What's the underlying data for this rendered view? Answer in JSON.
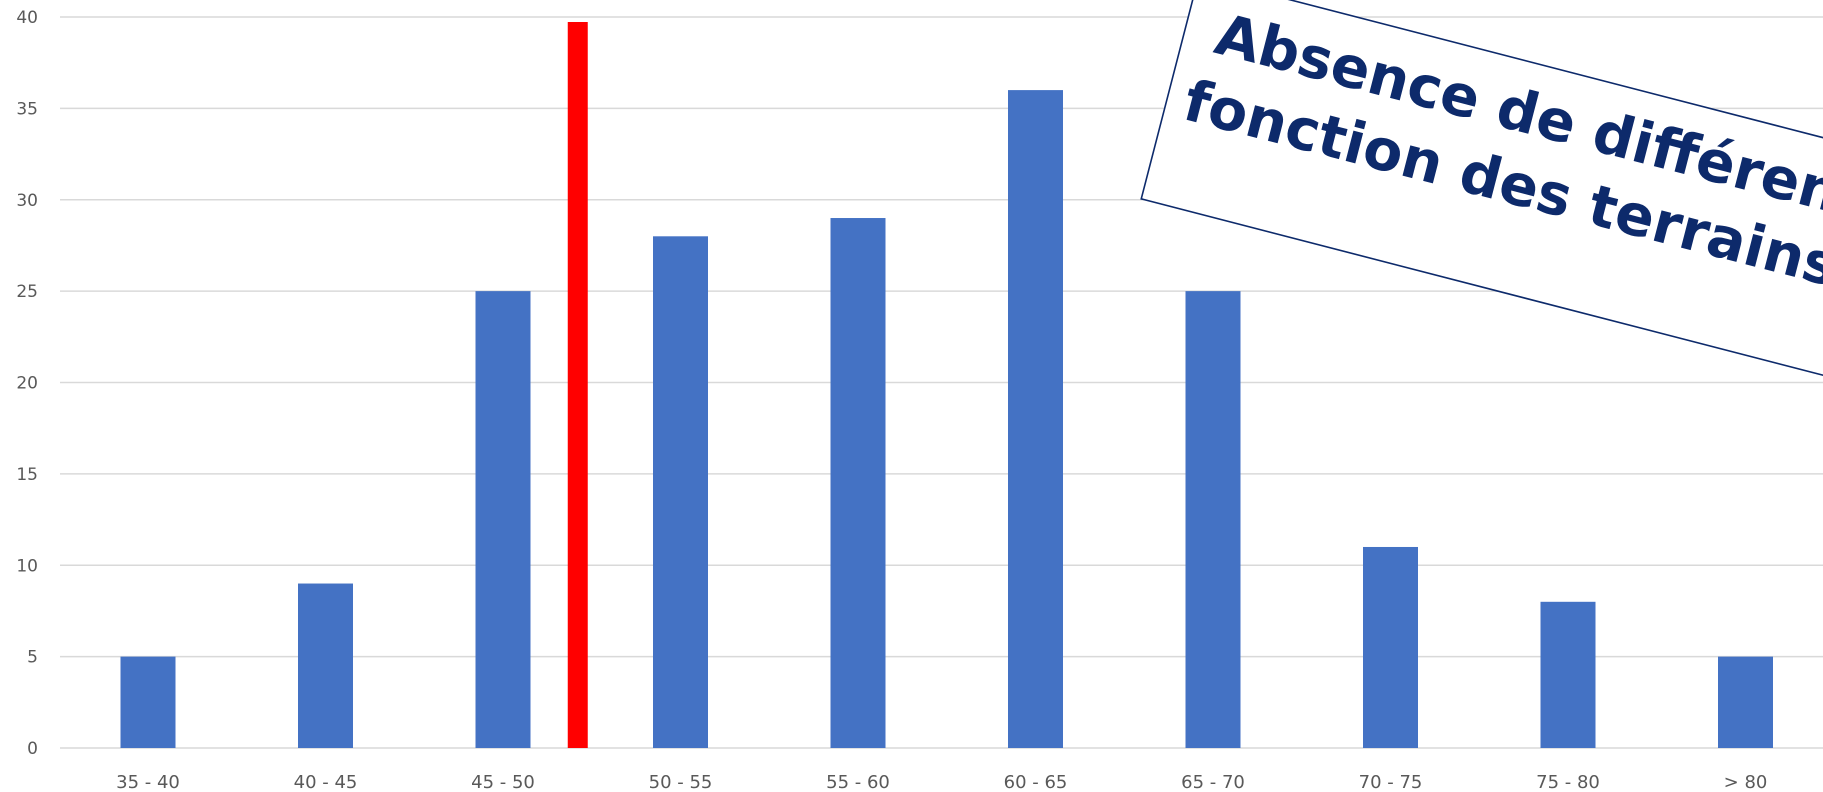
{
  "chart_data": {
    "type": "bar",
    "categories": [
      "35 - 40",
      "40 - 45",
      "45 - 50",
      "50 - 55",
      "55 - 60",
      "60 - 65",
      "65 - 70",
      "70 - 75",
      "75 - 80",
      "> 80"
    ],
    "series": [
      {
        "values": [
          5,
          9,
          25,
          28,
          29,
          36,
          25,
          11,
          8,
          5
        ],
        "color": "#4472c4"
      }
    ],
    "reference_line": {
      "x_position_between": [
        "45 - 50",
        "50 - 55"
      ],
      "color": "#ff0000"
    },
    "yticks": [
      0,
      5,
      10,
      15,
      20,
      25,
      30,
      35,
      40
    ],
    "ylim": [
      0,
      40
    ],
    "grid": true,
    "title": "",
    "xlabel": "",
    "ylabel": ""
  },
  "callout": {
    "line1": "Absence de différenc",
    "line2": "fonction des terrains (",
    "text_color": "#0d2a6b",
    "border_color": "#0d2a6b"
  }
}
